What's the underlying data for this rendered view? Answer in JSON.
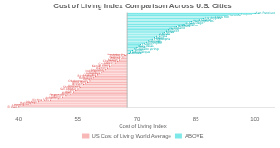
{
  "chart_data": {
    "type": "bar",
    "orientation": "horizontal",
    "title": "Cost of Living Index Comparison Across U.S. Cities",
    "x_label": "Cost of Living Index",
    "categories": [
      "El Paso",
      "Laredo",
      "Brownsville",
      "Harlingen",
      "McAllen",
      "Wichita Falls",
      "Amarillo",
      "Lubbock",
      "Beaumont",
      "Corpus Christi",
      "Killeen",
      "Waco",
      "Tyler",
      "San Antonio",
      "Shreveport",
      "Knoxville",
      "Jackson",
      "Memphis",
      "Little Rock",
      "Oklahoma City",
      "Tulsa",
      "Huntsville",
      "Birmingham",
      "Louisville",
      "Lexington",
      "Columbus",
      "Indianapolis",
      "Cincinnati",
      "Dayton",
      "Kansas City",
      "St. Louis",
      "Cleveland",
      "Detroit",
      "Charlotte",
      "Raleigh",
      "Atlanta",
      "Nashville",
      "Pittsburgh",
      "Salt Lake City",
      "Spokane",
      "Albuquerque",
      "Tucson",
      "Colorado Springs",
      "Boise",
      "Las Vegas",
      "Phoenix",
      "Minneapolis",
      "Milwaukee",
      "Chicago",
      "Philadelphia",
      "Miami",
      "Tampa",
      "Orlando",
      "Austin",
      "Dallas",
      "Houston",
      "Denver",
      "Portland",
      "Baltimore",
      "Sacramento",
      "Boston",
      "San Diego",
      "Washington DC",
      "Seattle",
      "Los Angeles",
      "New York",
      "Honolulu",
      "San Jose",
      "San Francisco"
    ],
    "series": [
      {
        "name": "US Cost of Living World Average",
        "color": "#f9b8b8",
        "label_color": "#e05555",
        "values": [
          40,
          41,
          43,
          44,
          45,
          48,
          50,
          51,
          52,
          53,
          53.5,
          54,
          54.5,
          55,
          55.5,
          56,
          56.5,
          57,
          57.5,
          58,
          58.5,
          59,
          59.5,
          60,
          60.5,
          61,
          61.5,
          62,
          62.5,
          63,
          63.5,
          64,
          64.5,
          65,
          65.5,
          66,
          66.5,
          67,
          67.5,
          null,
          null,
          null,
          null,
          null,
          null,
          null,
          null,
          null,
          null,
          null,
          null,
          null,
          null,
          null,
          null,
          null,
          null,
          null,
          null,
          null,
          null,
          null,
          null,
          null,
          null,
          null,
          null,
          null,
          null
        ]
      },
      {
        "name": "ABOVE",
        "color": "#7de8e8",
        "label_color": "#00b0b0",
        "values": [
          null,
          null,
          null,
          null,
          null,
          null,
          null,
          null,
          null,
          null,
          null,
          null,
          null,
          null,
          null,
          null,
          null,
          null,
          null,
          null,
          null,
          null,
          null,
          null,
          null,
          null,
          null,
          null,
          null,
          null,
          null,
          null,
          null,
          null,
          null,
          null,
          null,
          null,
          null,
          68,
          68.5,
          69,
          69.5,
          70,
          70.5,
          71,
          72,
          72.5,
          73,
          74,
          74.5,
          75,
          75.5,
          76,
          77,
          77.5,
          78,
          79,
          80,
          81,
          82,
          83,
          84,
          86,
          87,
          90,
          93,
          96,
          100
        ]
      }
    ],
    "reference_line": {
      "value": 67.5,
      "color": "#aaaaaa"
    },
    "xlim": [
      38,
      105
    ],
    "xticks": [
      40,
      55,
      70,
      85,
      100
    ],
    "grid": false,
    "legend": "bottom",
    "tick_labels": "x"
  }
}
